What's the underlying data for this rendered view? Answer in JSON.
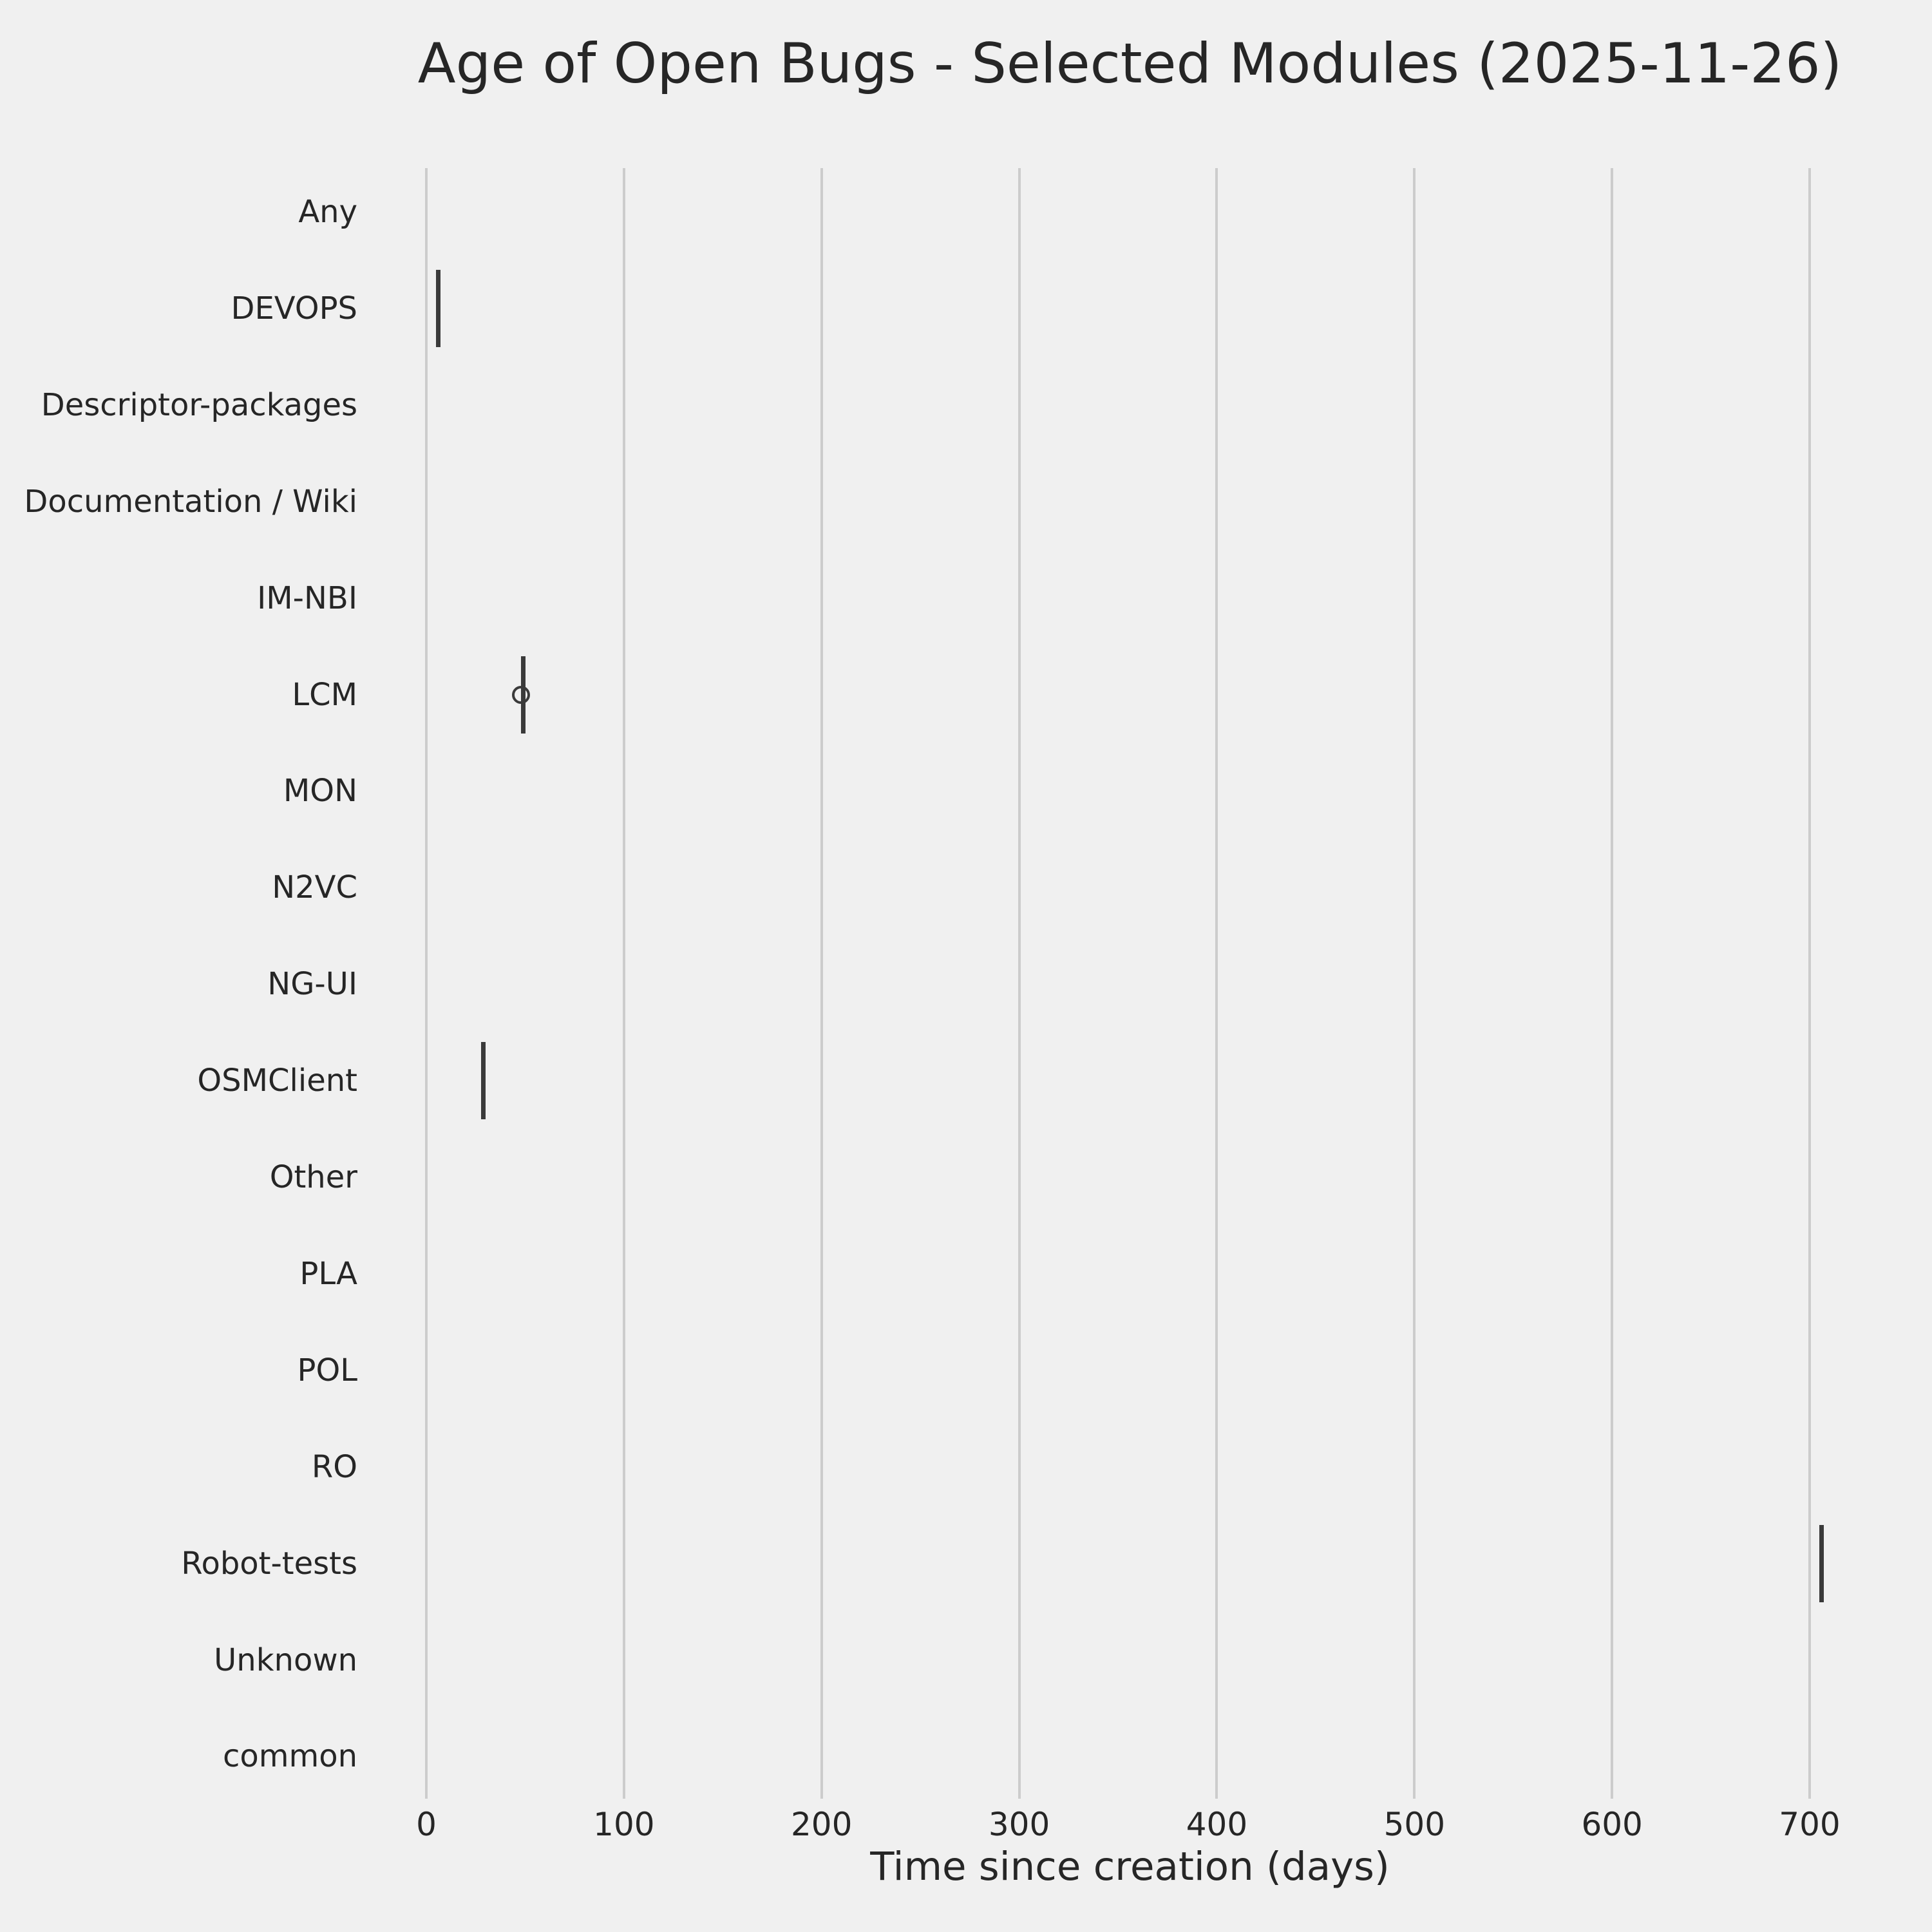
{
  "chart_data": {
    "type": "boxplot",
    "orientation": "horizontal",
    "title": "Age of Open Bugs - Selected Modules (2025-11-26)",
    "xlabel": "Time since creation (days)",
    "xticks": [
      0,
      100,
      200,
      300,
      400,
      500,
      600,
      700
    ],
    "xlim": [
      -29,
      741
    ],
    "grid": "vertical-gridlines-only",
    "legend": "none",
    "categories": [
      "Any",
      "DEVOPS",
      "Descriptor-packages",
      "Documentation / Wiki",
      "IM-NBI",
      "LCM",
      "MON",
      "N2VC",
      "NG-UI",
      "OSMClient",
      "Other",
      "PLA",
      "POL",
      "RO",
      "Robot-tests",
      "Unknown",
      "common"
    ],
    "boxes": [
      {
        "category": "DEVOPS",
        "whisker_low": 6,
        "q1": 6,
        "median": 6,
        "q3": 6,
        "whisker_high": 6,
        "fliers": []
      },
      {
        "category": "LCM",
        "whisker_low": 49,
        "q1": 49,
        "median": 49,
        "q3": 49,
        "whisker_high": 49,
        "fliers": [
          48
        ]
      },
      {
        "category": "OSMClient",
        "whisker_low": 29,
        "q1": 29,
        "median": 29,
        "q3": 29,
        "whisker_high": 29,
        "fliers": []
      },
      {
        "category": "Robot-tests",
        "whisker_low": 706,
        "q1": 706,
        "median": 706,
        "q3": 706,
        "whisker_high": 706,
        "fliers": []
      }
    ],
    "colors": {
      "background": "#f0f0f0",
      "grid": "#cccccc",
      "box_lines": "#3a3a3a",
      "text": "#262626"
    }
  }
}
